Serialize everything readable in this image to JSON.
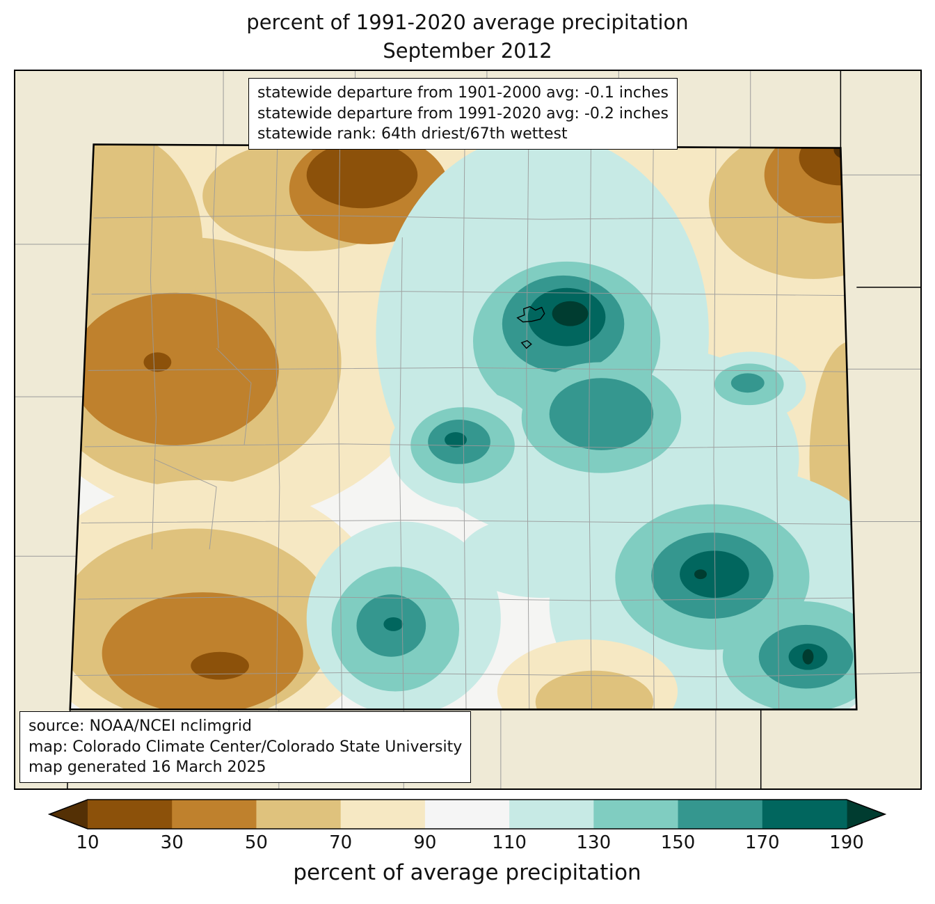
{
  "title": {
    "line1": "percent of 1991-2020 average precipitation",
    "line2": "September 2012"
  },
  "stats_box": {
    "lines": [
      "statewide departure from 1901-2000 avg: -0.1 inches",
      "statewide departure from 1991-2020 avg: -0.2 inches",
      "statewide rank: 64th driest/67th wettest"
    ]
  },
  "source_box": {
    "lines": [
      "source: NOAA/NCEI nclimgrid",
      "map: Colorado Climate Center/Colorado State University",
      "map generated 16 March 2025"
    ]
  },
  "colorbar": {
    "label": "percent of average precipitation",
    "tick_labels": [
      "10",
      "30",
      "50",
      "70",
      "90",
      "110",
      "130",
      "150",
      "170",
      "190"
    ],
    "under_arrow_color": "#543005",
    "over_arrow_color": "#003c30",
    "segment_colors": [
      "#8c510a",
      "#bf812d",
      "#dfc27d",
      "#f6e8c3",
      "#f5f5f5",
      "#c7eae5",
      "#80cdc1",
      "#35978f",
      "#01665e"
    ]
  },
  "map": {
    "region": "Colorado",
    "background_color": "#efead6",
    "state_base_color": "#f5f5f3",
    "county_line_color": "#9a9a9a",
    "state_border_color": "#000000"
  },
  "chart_data": {
    "type": "map",
    "title": "percent of 1991-2020 average precipitation — September 2012",
    "region": "Colorado",
    "units": "percent of average precipitation",
    "scale_bin_edges": [
      10,
      30,
      50,
      70,
      90,
      110,
      130,
      150,
      170,
      190
    ],
    "scale_colors": [
      "#543005",
      "#8c510a",
      "#bf812d",
      "#dfc27d",
      "#f6e8c3",
      "#f5f5f5",
      "#c7eae5",
      "#80cdc1",
      "#35978f",
      "#01665e",
      "#003c30"
    ],
    "statewide_departure_1901_2000_in": -0.1,
    "statewide_departure_1991_2020_in": -0.2,
    "statewide_rank": "64th driest/67th wettest"
  }
}
